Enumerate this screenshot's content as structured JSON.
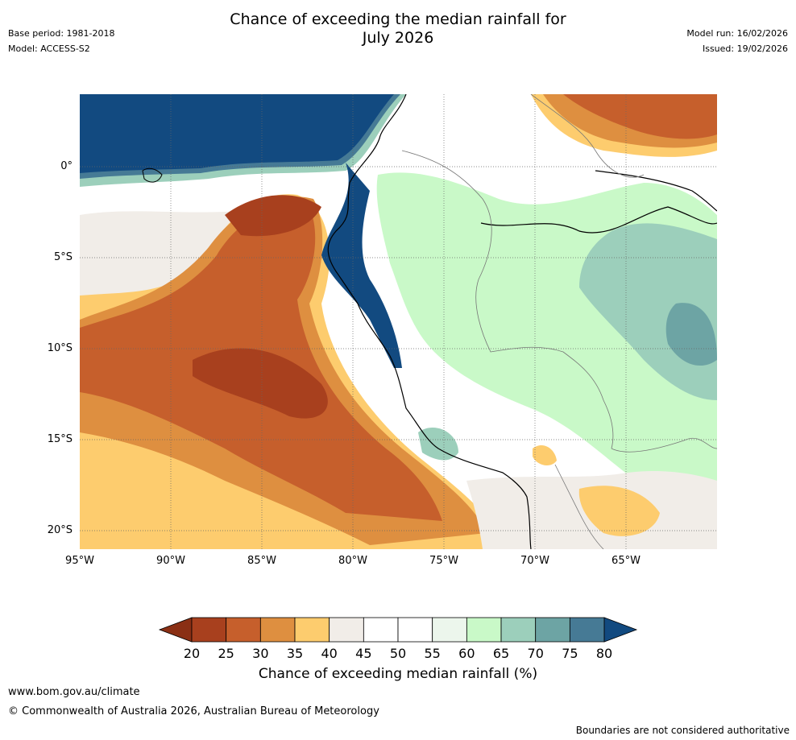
{
  "header": {
    "title_line1": "Chance of exceeding the median rainfall for",
    "title_line2": "July 2026",
    "base_period": "Base period: 1981-2018",
    "model": "Model: ACCESS-S2",
    "model_run": "Model run: 16/02/2026",
    "issued": "Issued: 19/02/2026"
  },
  "map": {
    "lat_ticks": [
      "0°",
      "5°S",
      "10°S",
      "15°S",
      "20°S"
    ],
    "lon_ticks": [
      "95°W",
      "90°W",
      "85°W",
      "80°W",
      "75°W",
      "70°W",
      "65°W"
    ],
    "lat_range_deg": [
      -21,
      4
    ],
    "lon_range_deg": [
      -95,
      -60
    ]
  },
  "colorbar": {
    "ticks": [
      "20",
      "25",
      "30",
      "35",
      "40",
      "45",
      "50",
      "55",
      "60",
      "65",
      "70",
      "75",
      "80"
    ],
    "colors": [
      "#a8401e",
      "#c65f2c",
      "#de8f40",
      "#fdcc6e",
      "#f1ede8",
      "#ffffff",
      "#ffffff",
      "#ecf6ec",
      "#c9f9c8",
      "#9ccfbb",
      "#6da4a4",
      "#467a95"
    ],
    "below_color": "#8a2f14",
    "above_color": "#124a80",
    "label": "Chance of exceeding median rainfall (%)"
  },
  "footer": {
    "url": "www.bom.gov.au/climate",
    "copyright": "© Commonwealth of Australia 2026, Australian Bureau of Meteorology",
    "note": "Boundaries are not considered authoritative"
  }
}
